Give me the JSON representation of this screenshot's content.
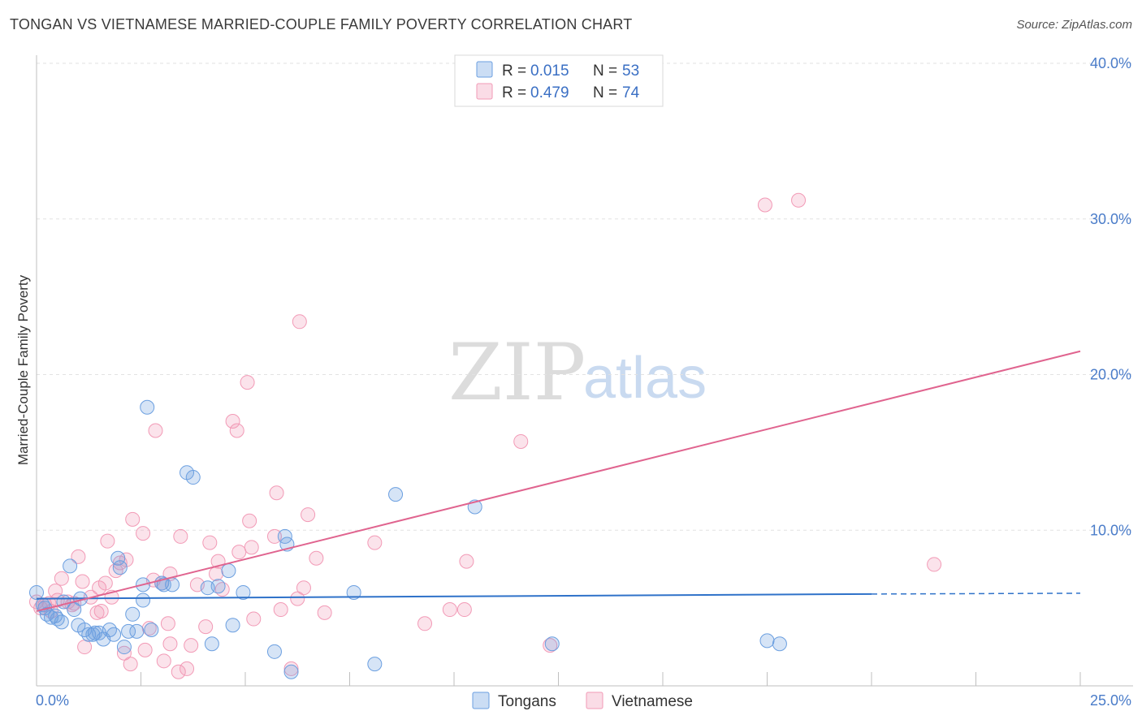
{
  "title": "TONGAN VS VIETNAMESE MARRIED-COUPLE FAMILY POVERTY CORRELATION CHART",
  "source": "Source: ZipAtlas.com",
  "watermark": {
    "zip": "ZIP",
    "atlas": "atlas"
  },
  "colors": {
    "tongans": "#6b9fe0",
    "tongans_line": "#2f72c9",
    "vietnamese": "#f29ab6",
    "vietnamese_line": "#e0648f",
    "axis_text": "#4a7cc9"
  },
  "legend": {
    "rows": [
      {
        "series": "Tongans",
        "r_label": "R =",
        "r_value": "0.015",
        "n_label": "N =",
        "n_value": "53"
      },
      {
        "series": "Vietnamese",
        "r_label": "R =",
        "r_value": "0.479",
        "n_label": "N =",
        "n_value": "74"
      }
    ]
  },
  "chart_data": {
    "type": "scatter",
    "title": "TONGAN VS VIETNAMESE MARRIED-COUPLE FAMILY POVERTY CORRELATION CHART",
    "xlabel": "",
    "ylabel": "Married-Couple Family Poverty",
    "xlim": [
      0,
      25
    ],
    "ylim": [
      0,
      40
    ],
    "x_tick_labels": [
      "0.0%",
      "25.0%"
    ],
    "y_ticks": [
      10,
      20,
      30,
      40
    ],
    "y_tick_labels": [
      "10.0%",
      "20.0%",
      "30.0%",
      "40.0%"
    ],
    "grid": true,
    "legend_position": "top-center",
    "series": [
      {
        "name": "Tongans",
        "r": 0.015,
        "n": 53,
        "trend": {
          "x0": 0,
          "y0": 5.6,
          "x1": 20,
          "y1": 5.9,
          "dashed_to_x": 25,
          "dashed_to_y": 5.95
        },
        "points": [
          [
            0.0,
            6.0
          ],
          [
            0.2,
            5.0
          ],
          [
            0.25,
            4.6
          ],
          [
            0.35,
            4.4
          ],
          [
            0.45,
            4.5
          ],
          [
            0.6,
            4.1
          ],
          [
            0.65,
            5.4
          ],
          [
            0.8,
            7.7
          ],
          [
            0.9,
            4.9
          ],
          [
            1.0,
            3.9
          ],
          [
            1.05,
            5.6
          ],
          [
            1.15,
            3.6
          ],
          [
            1.25,
            3.3
          ],
          [
            1.35,
            3.3
          ],
          [
            1.5,
            3.4
          ],
          [
            1.6,
            3.0
          ],
          [
            1.75,
            3.6
          ],
          [
            1.85,
            3.3
          ],
          [
            1.95,
            8.2
          ],
          [
            2.0,
            7.6
          ],
          [
            2.1,
            2.5
          ],
          [
            2.3,
            4.6
          ],
          [
            2.4,
            3.5
          ],
          [
            2.55,
            6.5
          ],
          [
            2.55,
            5.5
          ],
          [
            2.65,
            17.9
          ],
          [
            2.75,
            3.6
          ],
          [
            3.05,
            6.5
          ],
          [
            3.25,
            6.5
          ],
          [
            3.6,
            13.7
          ],
          [
            3.75,
            13.4
          ],
          [
            4.1,
            6.3
          ],
          [
            4.2,
            2.7
          ],
          [
            4.35,
            6.4
          ],
          [
            4.6,
            7.4
          ],
          [
            4.7,
            3.9
          ],
          [
            4.95,
            6.0
          ],
          [
            5.7,
            2.2
          ],
          [
            5.95,
            9.6
          ],
          [
            6.0,
            9.1
          ],
          [
            6.1,
            0.9
          ],
          [
            7.6,
            6.0
          ],
          [
            8.1,
            1.4
          ],
          [
            8.6,
            12.3
          ],
          [
            10.5,
            11.5
          ],
          [
            12.35,
            2.7
          ],
          [
            17.5,
            2.9
          ],
          [
            17.8,
            2.7
          ],
          [
            0.15,
            5.2
          ],
          [
            0.5,
            4.3
          ],
          [
            1.4,
            3.4
          ],
          [
            2.2,
            3.5
          ],
          [
            3.0,
            6.6
          ]
        ]
      },
      {
        "name": "Vietnamese",
        "r": 0.479,
        "n": 74,
        "trend": {
          "x0": 0,
          "y0": 4.8,
          "x1": 25,
          "y1": 21.5
        },
        "points": [
          [
            0.0,
            5.4
          ],
          [
            0.1,
            5.0
          ],
          [
            0.2,
            5.2
          ],
          [
            0.3,
            5.3
          ],
          [
            0.35,
            4.8
          ],
          [
            0.45,
            6.1
          ],
          [
            0.5,
            5.5
          ],
          [
            0.6,
            6.9
          ],
          [
            0.75,
            5.4
          ],
          [
            0.85,
            5.2
          ],
          [
            1.0,
            8.3
          ],
          [
            1.1,
            6.7
          ],
          [
            1.15,
            2.5
          ],
          [
            1.3,
            5.7
          ],
          [
            1.45,
            4.7
          ],
          [
            1.5,
            6.3
          ],
          [
            1.65,
            6.6
          ],
          [
            1.7,
            9.3
          ],
          [
            1.8,
            5.7
          ],
          [
            1.9,
            7.4
          ],
          [
            2.0,
            7.9
          ],
          [
            2.1,
            2.1
          ],
          [
            2.15,
            8.1
          ],
          [
            2.25,
            1.4
          ],
          [
            2.3,
            10.7
          ],
          [
            2.55,
            9.8
          ],
          [
            2.6,
            2.3
          ],
          [
            2.7,
            3.7
          ],
          [
            2.8,
            6.8
          ],
          [
            2.85,
            16.4
          ],
          [
            3.0,
            6.6
          ],
          [
            3.05,
            1.6
          ],
          [
            3.15,
            4.0
          ],
          [
            3.2,
            7.2
          ],
          [
            3.2,
            2.7
          ],
          [
            3.4,
            0.9
          ],
          [
            3.45,
            9.6
          ],
          [
            3.6,
            1.1
          ],
          [
            3.7,
            2.6
          ],
          [
            3.85,
            6.5
          ],
          [
            4.05,
            3.8
          ],
          [
            4.15,
            9.2
          ],
          [
            4.3,
            7.2
          ],
          [
            4.35,
            8.0
          ],
          [
            4.45,
            6.2
          ],
          [
            4.7,
            17.0
          ],
          [
            4.8,
            16.4
          ],
          [
            4.85,
            8.6
          ],
          [
            5.05,
            19.5
          ],
          [
            5.1,
            10.6
          ],
          [
            5.15,
            8.9
          ],
          [
            5.2,
            4.3
          ],
          [
            5.7,
            9.6
          ],
          [
            5.75,
            12.4
          ],
          [
            5.85,
            4.9
          ],
          [
            6.1,
            1.1
          ],
          [
            6.25,
            5.6
          ],
          [
            6.3,
            23.4
          ],
          [
            6.4,
            6.3
          ],
          [
            6.5,
            11.0
          ],
          [
            6.7,
            8.2
          ],
          [
            6.9,
            4.7
          ],
          [
            8.1,
            9.2
          ],
          [
            9.3,
            4.0
          ],
          [
            9.9,
            4.9
          ],
          [
            10.25,
            4.9
          ],
          [
            10.3,
            8.0
          ],
          [
            11.6,
            15.7
          ],
          [
            12.3,
            2.6
          ],
          [
            17.45,
            30.9
          ],
          [
            18.25,
            31.2
          ],
          [
            21.5,
            7.8
          ],
          [
            0.9,
            5.3
          ],
          [
            1.55,
            4.8
          ]
        ]
      }
    ]
  },
  "bottom_legend": {
    "items": [
      "Tongans",
      "Vietnamese"
    ]
  }
}
